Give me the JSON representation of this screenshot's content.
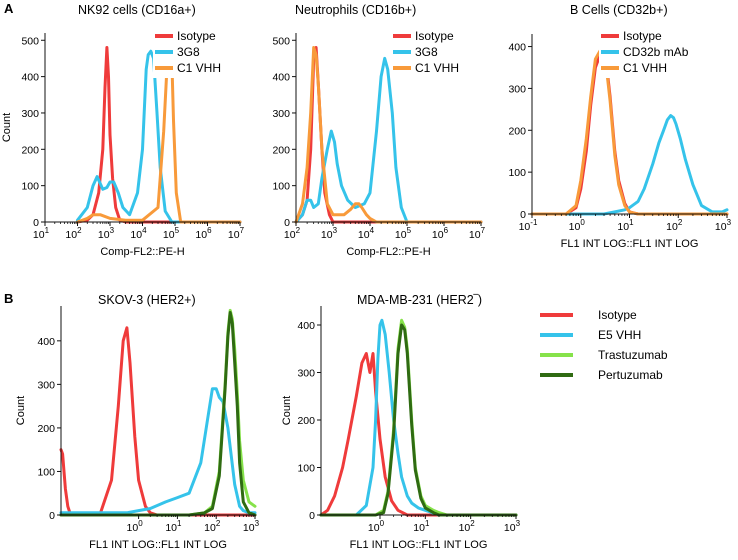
{
  "panel_labels": {
    "a": "A",
    "b": "B"
  },
  "chart_data": [
    {
      "type": "line",
      "id": "nk92",
      "title": "NK92 cells (CD16a+)",
      "xscale": "log",
      "xlim": [
        10,
        10000000
      ],
      "ylim": [
        0,
        520
      ],
      "xticks": [
        {
          "v": 10,
          "e": "1"
        },
        {
          "v": 100,
          "e": "2"
        },
        {
          "v": 1000,
          "e": "3"
        },
        {
          "v": 10000,
          "e": "4"
        },
        {
          "v": 100000,
          "e": "5"
        },
        {
          "v": 1000000,
          "e": "6"
        },
        {
          "v": 10000000,
          "e": "7"
        }
      ],
      "yticks": [
        0,
        100,
        200,
        300,
        400,
        500
      ],
      "xlabel": "Comp-FL2::PE-H",
      "ylabel": "Count",
      "series": [
        {
          "name": "Isotype",
          "color": "#ef3b3b",
          "x": [
            100,
            200,
            300,
            450,
            600,
            700,
            800,
            900,
            1000,
            1200,
            1500,
            2000,
            3000,
            10000000
          ],
          "y": [
            0,
            5,
            20,
            80,
            200,
            370,
            480,
            400,
            240,
            120,
            40,
            5,
            0,
            0
          ]
        },
        {
          "name": "3G8",
          "color": "#35c3ea",
          "x": [
            100,
            200,
            300,
            400,
            600,
            800,
            1000,
            1300,
            1800,
            2500,
            4000,
            7000,
            10000,
            13000,
            15000,
            18000,
            22000,
            28000,
            35000,
            50000,
            80000,
            10000000
          ],
          "y": [
            5,
            40,
            100,
            125,
            90,
            95,
            110,
            110,
            80,
            40,
            20,
            80,
            200,
            420,
            460,
            470,
            450,
            300,
            150,
            30,
            0,
            0
          ]
        },
        {
          "name": "C1 VHH",
          "color": "#f89a3a",
          "x": [
            100,
            200,
            300,
            500,
            1000,
            3000,
            10000,
            30000,
            45000,
            60000,
            70000,
            80000,
            90000,
            110000,
            150000,
            10000000
          ],
          "y": [
            0,
            10,
            20,
            20,
            10,
            5,
            5,
            40,
            250,
            470,
            480,
            440,
            280,
            80,
            0,
            0
          ]
        }
      ]
    },
    {
      "type": "line",
      "id": "neutrophils",
      "title": "Neutrophils (CD16b+)",
      "xscale": "log",
      "xlim": [
        100,
        10000000
      ],
      "ylim": [
        0,
        520
      ],
      "xticks": [
        {
          "v": 100,
          "e": "2"
        },
        {
          "v": 1000,
          "e": "3"
        },
        {
          "v": 10000,
          "e": "4"
        },
        {
          "v": 100000,
          "e": "5"
        },
        {
          "v": 1000000,
          "e": "6"
        },
        {
          "v": 10000000,
          "e": "7"
        }
      ],
      "yticks": [
        0,
        100,
        200,
        300,
        400,
        500
      ],
      "xlabel": "Comp-FL2::PE-H",
      "ylabel": "",
      "series": [
        {
          "name": "Isotype",
          "color": "#ef3b3b",
          "x": [
            100,
            150,
            200,
            250,
            300,
            350,
            400,
            500,
            600,
            800,
            1000,
            10000000
          ],
          "y": [
            0,
            20,
            60,
            200,
            450,
            480,
            380,
            200,
            80,
            20,
            0,
            0
          ]
        },
        {
          "name": "3G8",
          "color": "#35c3ea",
          "x": [
            100,
            150,
            200,
            250,
            300,
            400,
            500,
            700,
            900,
            1100,
            1300,
            1700,
            2500,
            4000,
            7000,
            10000,
            15000,
            20000,
            25000,
            30000,
            40000,
            50000,
            70000,
            100000,
            10000000
          ],
          "y": [
            0,
            20,
            60,
            60,
            40,
            50,
            120,
            200,
            250,
            220,
            160,
            100,
            60,
            40,
            50,
            80,
            250,
            400,
            450,
            420,
            300,
            150,
            40,
            0,
            0
          ]
        },
        {
          "name": "C1 VHH",
          "color": "#f89a3a",
          "x": [
            100,
            150,
            200,
            250,
            300,
            350,
            400,
            500,
            700,
            1000,
            2000,
            3000,
            4000,
            5000,
            6000,
            8000,
            10000,
            15000,
            10000000
          ],
          "y": [
            0,
            50,
            150,
            300,
            480,
            460,
            380,
            200,
            50,
            20,
            20,
            35,
            50,
            50,
            40,
            20,
            10,
            0,
            0
          ]
        }
      ]
    },
    {
      "type": "line",
      "id": "bcells",
      "title": "B Cells (CD32b+)",
      "xscale": "log",
      "xlim": [
        0.1,
        1000
      ],
      "ylim": [
        0,
        430
      ],
      "xticks": [
        {
          "v": 0.1,
          "e": "-1"
        },
        {
          "v": 1,
          "e": "0"
        },
        {
          "v": 10,
          "e": "1"
        },
        {
          "v": 100,
          "e": "2"
        },
        {
          "v": 1000,
          "e": "3"
        }
      ],
      "yticks": [
        0,
        100,
        200,
        300,
        400
      ],
      "xlabel": "FL1 INT LOG::FL1 INT LOG",
      "ylabel": "",
      "series": [
        {
          "name": "Isotype",
          "color": "#ef3b3b",
          "x": [
            0.1,
            0.5,
            0.8,
            1,
            1.3,
            1.6,
            2,
            2.5,
            3,
            3.5,
            4,
            5,
            6,
            8,
            10,
            15,
            1000
          ],
          "y": [
            0,
            0,
            15,
            60,
            150,
            260,
            350,
            380,
            390,
            340,
            280,
            150,
            80,
            25,
            5,
            0,
            0
          ]
        },
        {
          "name": "CD32b mAb",
          "color": "#35c3ea",
          "x": [
            0.1,
            3,
            5,
            8,
            10,
            15,
            20,
            30,
            40,
            50,
            60,
            70,
            80,
            90,
            110,
            140,
            200,
            300,
            500,
            800,
            1000
          ],
          "y": [
            0,
            0,
            5,
            10,
            15,
            30,
            60,
            120,
            170,
            200,
            225,
            235,
            230,
            215,
            180,
            130,
            70,
            20,
            5,
            5,
            10
          ]
        },
        {
          "name": "C1 VHH",
          "color": "#f89a3a",
          "x": [
            0.1,
            0.5,
            0.8,
            1,
            1.3,
            1.6,
            2,
            2.5,
            3,
            3.5,
            4,
            5,
            6,
            8,
            10,
            15,
            1000
          ],
          "y": [
            0,
            0,
            20,
            80,
            180,
            280,
            370,
            390,
            380,
            330,
            270,
            140,
            70,
            20,
            5,
            0,
            0
          ]
        }
      ]
    },
    {
      "type": "line",
      "id": "skov3",
      "title": "SKOV-3 (HER2+)",
      "xscale": "log",
      "xlim": [
        0.01,
        1000
      ],
      "ylim": [
        0,
        480
      ],
      "xticks": [
        {
          "v": 1,
          "e": "0"
        },
        {
          "v": 10,
          "e": "1"
        },
        {
          "v": 100,
          "e": "2"
        },
        {
          "v": 1000,
          "e": "3"
        }
      ],
      "yticks": [
        0,
        100,
        200,
        300,
        400
      ],
      "xlabel": "FL1 INT LOG::FL1 INT LOG",
      "ylabel": "Count",
      "series": [
        {
          "name": "Isotype",
          "color": "#ef3b3b",
          "x": [
            0.01,
            0.011,
            0.013,
            0.015,
            0.017,
            0.02,
            0.05,
            0.1,
            0.2,
            0.3,
            0.4,
            0.5,
            0.6,
            0.8,
            1,
            1.5,
            2,
            3,
            1000
          ],
          "y": [
            150,
            140,
            60,
            20,
            5,
            0,
            0,
            0,
            80,
            250,
            400,
            430,
            350,
            180,
            80,
            20,
            5,
            0,
            0
          ]
        },
        {
          "name": "E5 VHH",
          "color": "#35c3ea",
          "x": [
            0.01,
            0.1,
            0.5,
            1,
            2,
            5,
            10,
            20,
            40,
            60,
            80,
            100,
            120,
            150,
            200,
            300,
            400,
            500,
            700,
            1000
          ],
          "y": [
            5,
            5,
            5,
            10,
            15,
            30,
            40,
            50,
            120,
            220,
            290,
            290,
            270,
            260,
            200,
            70,
            20,
            10,
            5,
            5
          ]
        },
        {
          "name": "Trastuzumab",
          "color": "#86e24a",
          "x": [
            0.01,
            20,
            50,
            80,
            120,
            170,
            200,
            230,
            260,
            300,
            350,
            400,
            500,
            700,
            1000
          ],
          "y": [
            0,
            0,
            5,
            20,
            100,
            300,
            420,
            470,
            450,
            380,
            280,
            170,
            80,
            30,
            20
          ]
        },
        {
          "name": "Pertuzumab",
          "color": "#2f6b12",
          "x": [
            0.01,
            20,
            50,
            80,
            120,
            170,
            200,
            230,
            260,
            300,
            350,
            400,
            500,
            700,
            1000
          ],
          "y": [
            0,
            0,
            5,
            15,
            90,
            290,
            410,
            465,
            440,
            350,
            250,
            120,
            30,
            5,
            0
          ]
        }
      ]
    },
    {
      "type": "line",
      "id": "mda",
      "title": "MDA-MB-231 (HER2‾)",
      "xscale": "log",
      "xlim": [
        0.05,
        1000
      ],
      "ylim": [
        0,
        440
      ],
      "xticks": [
        {
          "v": 1,
          "e": "0"
        },
        {
          "v": 10,
          "e": "1"
        },
        {
          "v": 100,
          "e": "2"
        },
        {
          "v": 1000,
          "e": "3"
        }
      ],
      "yticks": [
        0,
        100,
        200,
        300,
        400
      ],
      "xlabel": "FL1 INT LOG::FL1 INT LOG",
      "ylabel": "Count",
      "series": [
        {
          "name": "Isotype",
          "color": "#ef3b3b",
          "x": [
            0.05,
            0.07,
            0.1,
            0.15,
            0.2,
            0.3,
            0.4,
            0.5,
            0.6,
            0.7,
            0.8,
            1,
            1.3,
            1.8,
            2.5,
            4,
            1000
          ],
          "y": [
            0,
            10,
            40,
            100,
            160,
            250,
            320,
            340,
            300,
            340,
            260,
            160,
            80,
            30,
            10,
            0,
            0
          ]
        },
        {
          "name": "E5 VHH",
          "color": "#35c3ea",
          "x": [
            0.05,
            0.3,
            0.5,
            0.7,
            0.8,
            0.9,
            1,
            1.1,
            1.3,
            1.6,
            2,
            2.5,
            3,
            4,
            5,
            7,
            10,
            20,
            1000
          ],
          "y": [
            0,
            0,
            20,
            100,
            200,
            330,
            400,
            410,
            380,
            300,
            200,
            130,
            80,
            40,
            25,
            15,
            10,
            0,
            0
          ]
        },
        {
          "name": "Trastuzumab",
          "color": "#86e24a",
          "x": [
            0.05,
            0.8,
            1.2,
            1.5,
            2,
            2.5,
            3,
            3.5,
            4,
            5,
            6,
            8,
            10,
            15,
            20,
            30,
            1000
          ],
          "y": [
            0,
            0,
            10,
            50,
            180,
            350,
            410,
            395,
            350,
            200,
            100,
            40,
            20,
            10,
            5,
            0,
            0
          ]
        },
        {
          "name": "Pertuzumab",
          "color": "#2f6b12",
          "x": [
            0.05,
            0.8,
            1.2,
            1.5,
            2,
            2.5,
            3,
            3.5,
            4,
            5,
            6,
            8,
            10,
            15,
            20,
            30,
            1000
          ],
          "y": [
            0,
            0,
            5,
            45,
            170,
            340,
            400,
            390,
            340,
            190,
            95,
            35,
            15,
            5,
            0,
            0,
            0
          ]
        }
      ]
    }
  ]
}
